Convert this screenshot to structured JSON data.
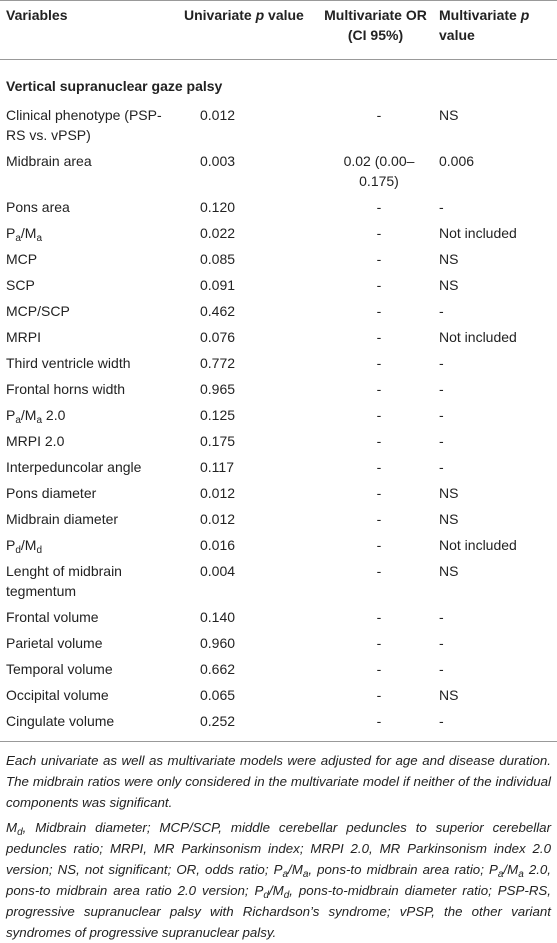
{
  "table": {
    "header": [
      "Variables",
      [
        {
          "text": "Univariate "
        },
        {
          "i": "p"
        },
        {
          "text": " value"
        }
      ],
      "Multivariate OR (CI 95%)",
      [
        {
          "text": "Multivariate "
        },
        {
          "i": "p"
        },
        {
          "text": " value"
        }
      ]
    ],
    "section": "Vertical supranuclear gaze palsy",
    "rows": [
      [
        "Clinical phenotype (PSP-RS vs. vPSP)",
        "0.012",
        "-",
        "NS"
      ],
      [
        "Midbrain area",
        "0.003",
        "0.02 (0.00–0.175)",
        "0.006"
      ],
      [
        "Pons area",
        "0.120",
        "-",
        "-"
      ],
      [
        [
          {
            "text": "P"
          },
          {
            "sub": "a"
          },
          {
            "text": "/M"
          },
          {
            "sub": "a"
          }
        ],
        "0.022",
        "-",
        "Not included"
      ],
      [
        "MCP",
        "0.085",
        "-",
        "NS"
      ],
      [
        "SCP",
        "0.091",
        "-",
        "NS"
      ],
      [
        "MCP/SCP",
        "0.462",
        "-",
        "-"
      ],
      [
        "MRPI",
        "0.076",
        "-",
        "Not included"
      ],
      [
        "Third ventricle width",
        "0.772",
        "-",
        "-"
      ],
      [
        "Frontal horns width",
        "0.965",
        "-",
        "-"
      ],
      [
        [
          {
            "text": "P"
          },
          {
            "sub": "a"
          },
          {
            "text": "/M"
          },
          {
            "sub": "a"
          },
          {
            "text": " 2.0"
          }
        ],
        "0.125",
        "-",
        "-"
      ],
      [
        "MRPI 2.0",
        "0.175",
        "-",
        "-"
      ],
      [
        "Interpeduncolar angle",
        "0.117",
        "-",
        "-"
      ],
      [
        "Pons diameter",
        "0.012",
        "-",
        "NS"
      ],
      [
        "Midbrain diameter",
        "0.012",
        "-",
        "NS"
      ],
      [
        [
          {
            "text": "P"
          },
          {
            "sub": "d"
          },
          {
            "text": "/M"
          },
          {
            "sub": "d"
          }
        ],
        "0.016",
        "-",
        "Not included"
      ],
      [
        "Lenght of midbrain tegmentum",
        "0.004",
        "-",
        "NS"
      ],
      [
        "Frontal volume",
        "0.140",
        "-",
        "-"
      ],
      [
        "Parietal volume",
        "0.960",
        "-",
        "-"
      ],
      [
        "Temporal volume",
        "0.662",
        "-",
        "-"
      ],
      [
        "Occipital volume",
        "0.065",
        "-",
        "NS"
      ],
      [
        "Cingulate volume",
        "0.252",
        "-",
        "-"
      ]
    ]
  },
  "footnotes": [
    "Each univariate as well as multivariate models were adjusted for age and disease duration. The midbrain ratios were only considered in the multivariate model if neither of the individual components was significant.",
    [
      {
        "text": "M"
      },
      {
        "sub": "d"
      },
      {
        "text": ", Midbrain diameter; MCP/SCP, middle cerebellar peduncles to superior cerebellar peduncles ratio; MRPI, MR Parkinsonism index; MRPI 2.0, MR Parkinsonism index 2.0 version; NS, not significant; OR, odds ratio; P"
      },
      {
        "sub": "a"
      },
      {
        "text": "/M"
      },
      {
        "sub": "a"
      },
      {
        "text": ", pons-to midbrain area ratio; P"
      },
      {
        "sub": "a"
      },
      {
        "text": "/M"
      },
      {
        "sub": "a"
      },
      {
        "text": " 2.0, pons-to midbrain area ratio 2.0 version; P"
      },
      {
        "sub": "d"
      },
      {
        "text": "/M"
      },
      {
        "sub": "d"
      },
      {
        "text": ", pons-to-midbrain diameter ratio; PSP-RS, progressive supranuclear palsy with Richardson’s syndrome; vPSP, the other variant syndromes of progressive supranuclear palsy."
      }
    ]
  ]
}
